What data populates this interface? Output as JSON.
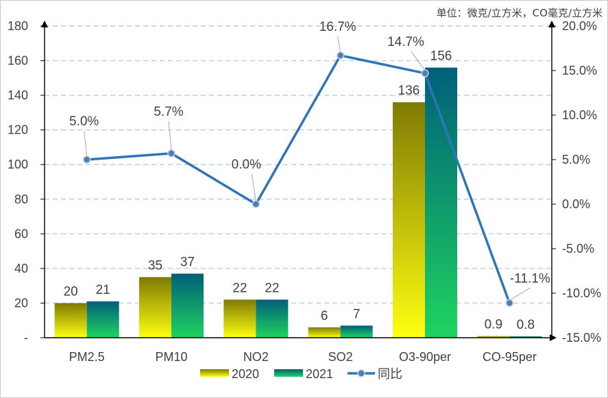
{
  "chart_data": {
    "type": "bar",
    "unit_note": "单位：微克/立方米，CO毫克/立方米",
    "categories": [
      "PM2.5",
      "PM10",
      "NO2",
      "SO2",
      "O3-90per",
      "CO-95per"
    ],
    "series": [
      {
        "name": "2020",
        "kind": "bar",
        "values": [
          20,
          35,
          22,
          6,
          136,
          0.9
        ],
        "labels": [
          "20",
          "35",
          "22",
          "6",
          "136",
          "0.9"
        ]
      },
      {
        "name": "2021",
        "kind": "bar",
        "values": [
          21,
          37,
          22,
          7,
          156,
          0.8
        ],
        "labels": [
          "21",
          "37",
          "22",
          "7",
          "156",
          "0.8"
        ]
      },
      {
        "name": "同比",
        "kind": "line",
        "axis": "right",
        "values": [
          5.0,
          5.7,
          0.0,
          16.7,
          14.7,
          -11.1
        ],
        "labels": [
          "5.0%",
          "5.7%",
          "0.0%",
          "16.7%",
          "14.7%",
          "-11.1%"
        ]
      }
    ],
    "y_left": {
      "min": 0,
      "max": 180,
      "step": 20,
      "tick_labels": [
        "-",
        "20",
        "40",
        "60",
        "80",
        "100",
        "120",
        "140",
        "160",
        "180"
      ]
    },
    "y_right": {
      "min": -15,
      "max": 20,
      "step": 5,
      "tick_labels": [
        "-15.0%",
        "-10.0%",
        "-5.0%",
        "0.0%",
        "5.0%",
        "10.0%",
        "15.0%",
        "20.0%"
      ]
    },
    "legend": [
      "2020",
      "2021",
      "同比"
    ],
    "legend_position": "bottom",
    "grid": true
  },
  "colors": {
    "bar2020_top": "#7f7b04",
    "bar2020_bottom": "#ffff10",
    "bar2021_top": "#005f7a",
    "bar2021_bottom": "#1fd35f",
    "line": "#2e75b6",
    "marker_fill": "#4f7fb5",
    "grid": "#a9c8e2",
    "axis": "#000000",
    "text": "#404040"
  }
}
